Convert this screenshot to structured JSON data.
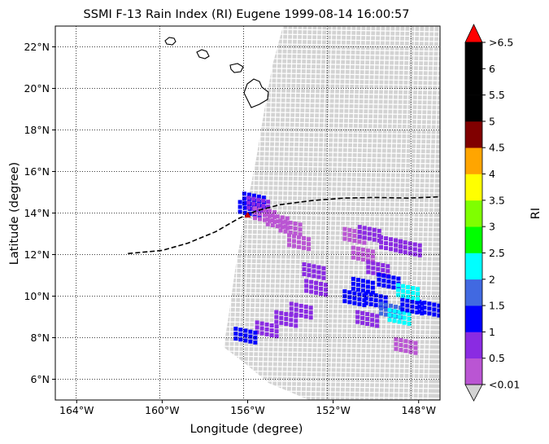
{
  "title": "SSMI F-13 Rain Index (RI) Eugene 1999-08-14 16:00:57",
  "xlabel": "Longitude (degree)",
  "ylabel": "Latitude (degree)",
  "colorbar": {
    "label": "RI",
    "under_color": "#d3d3d3",
    "over_color": "#ff0000",
    "colors": [
      "#ba55d3",
      "#8a2be2",
      "#0000ff",
      "#4169e1",
      "#00ffff",
      "#00ff00",
      "#7fff00",
      "#ffff00",
      "#ffa500",
      "#800000",
      "#000000",
      "#000000",
      "#000000"
    ],
    "levels": [
      "<0.01",
      "0.5",
      "1",
      "1.5",
      "2",
      "2.5",
      "3",
      "3.5",
      "4",
      "4.5",
      "5",
      "5.5",
      "6",
      ">6.5"
    ]
  },
  "map": {
    "lon_range": [
      -165,
      -147
    ],
    "lat_range": [
      5,
      23
    ],
    "x_ticks": [
      "164°W",
      "160°W",
      "156°W",
      "152°W",
      "148°W"
    ],
    "x_tick_values": [
      -164,
      -160,
      -156,
      -152,
      -148
    ],
    "y_ticks": [
      "6°N",
      "8°N",
      "10°N",
      "12°N",
      "14°N",
      "16°N",
      "18°N",
      "20°N",
      "22°N"
    ],
    "y_tick_values": [
      6,
      8,
      10,
      12,
      14,
      16,
      18,
      20,
      22
    ],
    "gridlines": "dotted",
    "coastline": "Hawaiian Islands",
    "swath_color": "#d3d3d3",
    "track_style": "dashed",
    "track_color": "#000000",
    "storm_marker_color": "#cc0000"
  },
  "chart_data": {
    "type": "map",
    "track": {
      "lon": [
        -161.6,
        -160.0,
        -158.8,
        -157.5,
        -156.4,
        -155.6,
        -154.5,
        -153.0,
        -151.5,
        -150.0,
        -148.5,
        -147.0
      ],
      "lat": [
        12.05,
        12.2,
        12.55,
        13.1,
        13.75,
        14.1,
        14.4,
        14.6,
        14.72,
        14.75,
        14.72,
        14.78
      ]
    },
    "storm_position": {
      "lon": -156.0,
      "lat": 13.9
    },
    "rain_cells": [
      {
        "lon": -155.9,
        "lat": 14.2,
        "ri": 1.2
      },
      {
        "lon": -155.7,
        "lat": 14.6,
        "ri": 1.1
      },
      {
        "lon": -155.5,
        "lat": 14.4,
        "ri": 0.6
      },
      {
        "lon": -155.2,
        "lat": 13.9,
        "ri": 0.4
      },
      {
        "lon": -154.6,
        "lat": 13.6,
        "ri": 0.3
      },
      {
        "lon": -154.0,
        "lat": 13.3,
        "ri": 0.3
      },
      {
        "lon": -153.6,
        "lat": 12.6,
        "ri": 0.3
      },
      {
        "lon": -151.0,
        "lat": 12.9,
        "ri": 0.4
      },
      {
        "lon": -150.3,
        "lat": 13.0,
        "ri": 0.6
      },
      {
        "lon": -149.3,
        "lat": 12.5,
        "ri": 0.7
      },
      {
        "lon": -148.4,
        "lat": 12.3,
        "ri": 0.5
      },
      {
        "lon": -150.6,
        "lat": 12.0,
        "ri": 0.4
      },
      {
        "lon": -149.9,
        "lat": 11.3,
        "ri": 0.8
      },
      {
        "lon": -149.4,
        "lat": 10.7,
        "ri": 1.2
      },
      {
        "lon": -150.6,
        "lat": 10.5,
        "ri": 1.1
      },
      {
        "lon": -151.0,
        "lat": 9.9,
        "ri": 1.4
      },
      {
        "lon": -150.0,
        "lat": 9.8,
        "ri": 1.2
      },
      {
        "lon": -149.3,
        "lat": 9.3,
        "ri": 1.6
      },
      {
        "lon": -148.9,
        "lat": 9.0,
        "ri": 2.3
      },
      {
        "lon": -148.3,
        "lat": 9.5,
        "ri": 1.4
      },
      {
        "lon": -147.5,
        "lat": 9.4,
        "ri": 1.2
      },
      {
        "lon": -148.5,
        "lat": 10.2,
        "ri": 2.1
      },
      {
        "lon": -150.4,
        "lat": 8.9,
        "ri": 0.8
      },
      {
        "lon": -152.8,
        "lat": 10.4,
        "ri": 0.6
      },
      {
        "lon": -153.5,
        "lat": 9.3,
        "ri": 0.8
      },
      {
        "lon": -154.2,
        "lat": 8.9,
        "ri": 0.7
      },
      {
        "lon": -155.1,
        "lat": 8.4,
        "ri": 0.6
      },
      {
        "lon": -156.1,
        "lat": 8.1,
        "ri": 1.1
      },
      {
        "lon": -152.9,
        "lat": 11.2,
        "ri": 0.5
      },
      {
        "lon": -148.6,
        "lat": 7.6,
        "ri": 0.4
      }
    ]
  }
}
